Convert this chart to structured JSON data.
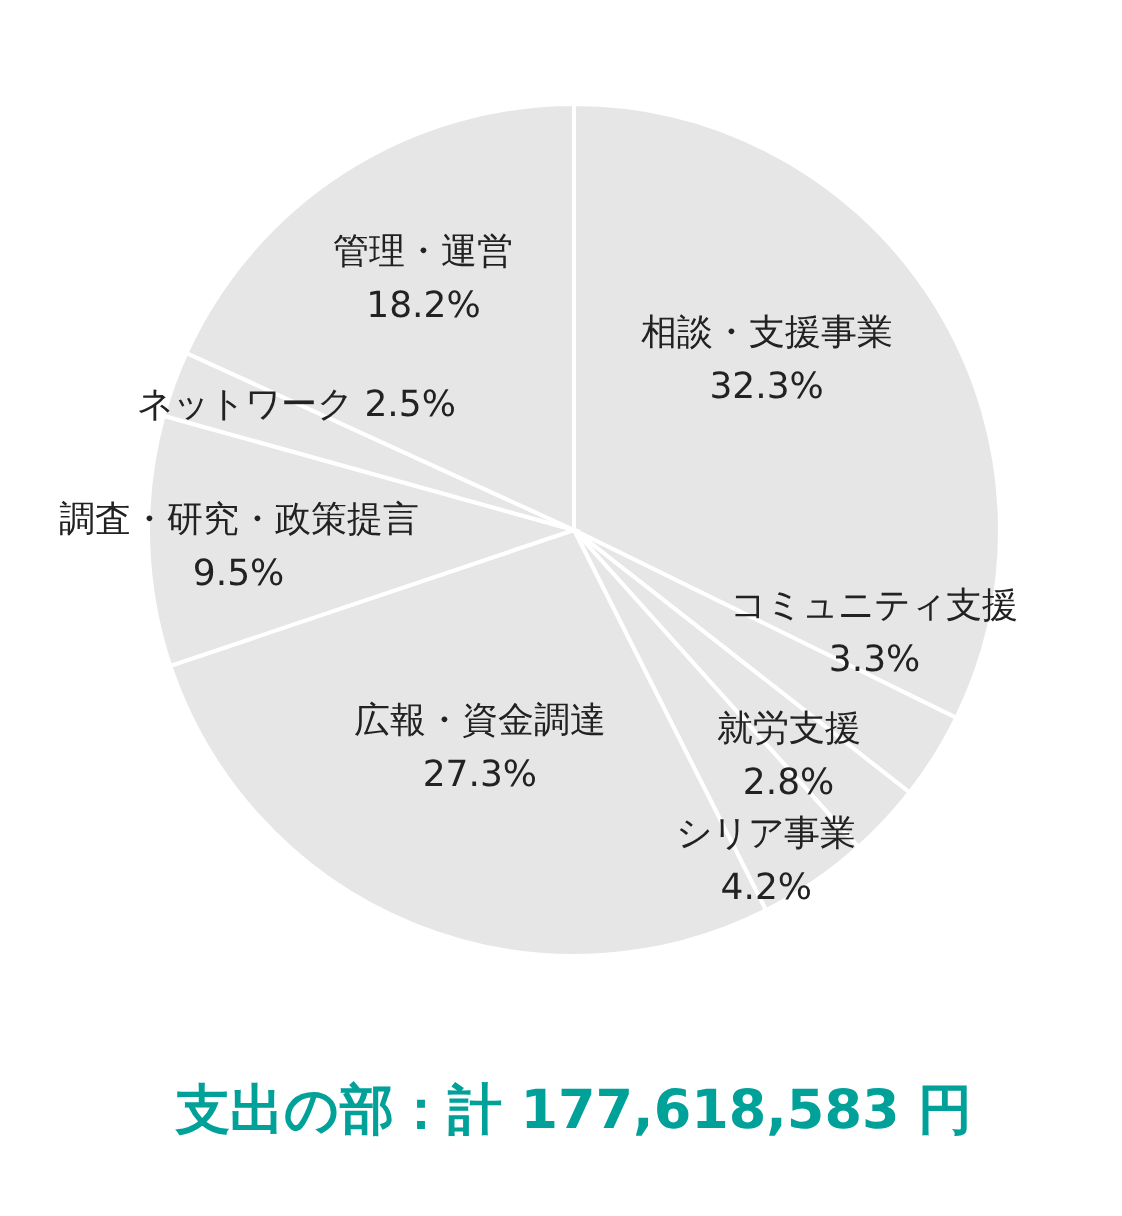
{
  "chart_data": {
    "type": "pie",
    "title": "支出の部：計 177,618,583 円",
    "categories": [
      "相談・支援事業",
      "コミュニティ支援",
      "就労支援",
      "シリア事業",
      "広報・資金調達",
      "調査・研究・政策提言",
      "ネットワーク",
      "管理・運営"
    ],
    "values": [
      32.3,
      3.3,
      2.8,
      4.2,
      27.3,
      9.5,
      2.5,
      18.2
    ],
    "value_labels": [
      "32.3%",
      "3.3%",
      "2.8%",
      "4.2%",
      "27.3%",
      "9.5%",
      "2.5%",
      "18.2%"
    ],
    "colors": [
      "#e6e6e6",
      "#e6e6e6",
      "#e6e6e6",
      "#e6e6e6",
      "#e6e6e6",
      "#e6e6e6",
      "#e6e6e6",
      "#e6e6e6"
    ]
  }
}
